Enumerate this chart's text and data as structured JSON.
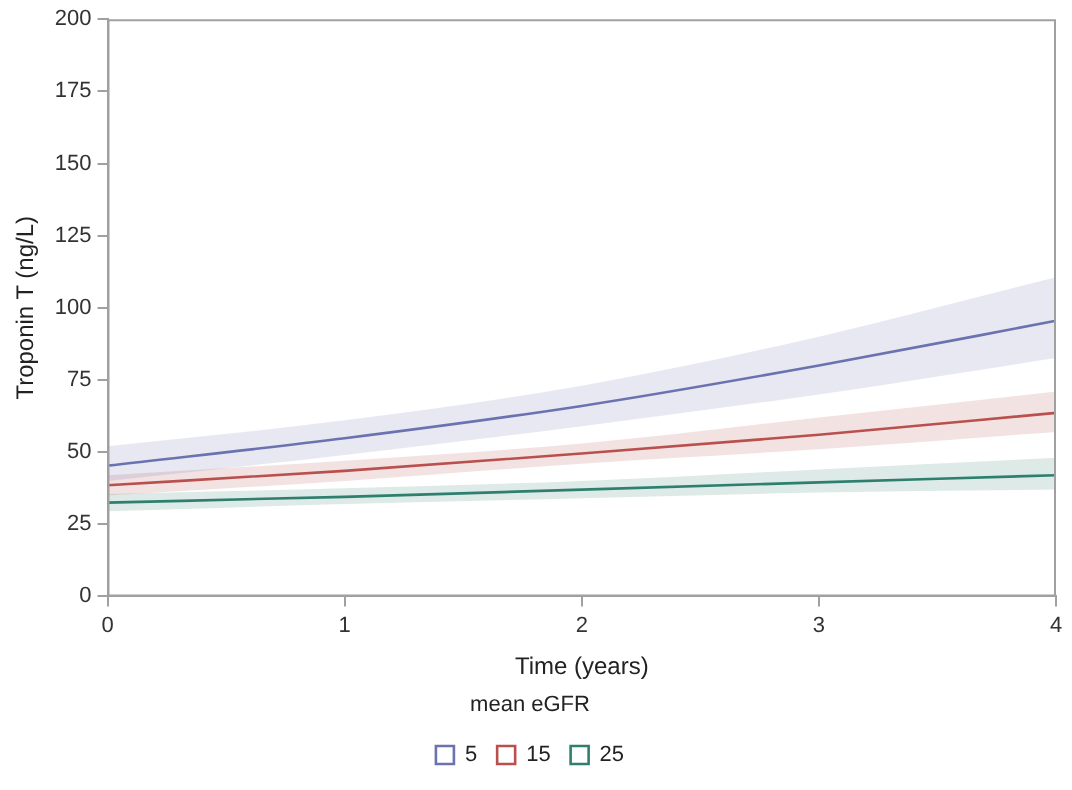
{
  "chart_data": {
    "type": "line",
    "xlabel": "Time (years)",
    "ylabel": "Troponin T (ng/L)",
    "legend_title": "mean eGFR",
    "x": [
      0,
      1,
      2,
      3,
      4
    ],
    "series": [
      {
        "name": "5",
        "color": "#6b72b0",
        "values": [
          45.3,
          54.8,
          66,
          80,
          95.5
        ],
        "lower": [
          40,
          49,
          59,
          70,
          82.6
        ],
        "upper": [
          52,
          61,
          73,
          90,
          110.6
        ]
      },
      {
        "name": "15",
        "color": "#b9504d",
        "values": [
          38.5,
          43.5,
          49.5,
          56,
          63.6
        ],
        "lower": [
          35,
          40,
          46,
          51,
          57
        ],
        "upper": [
          42,
          47,
          53,
          62,
          71
        ]
      },
      {
        "name": "25",
        "color": "#2f7f6f",
        "values": [
          32.5,
          34.5,
          37,
          39.5,
          42
        ],
        "lower": [
          29.5,
          32,
          34,
          36,
          37
        ],
        "upper": [
          35.5,
          37.5,
          40,
          44,
          48
        ]
      }
    ],
    "xlim": [
      0,
      4
    ],
    "xticks": [
      0,
      1,
      2,
      3,
      4
    ],
    "ylim": [
      0,
      200
    ],
    "yticks": [
      0,
      25,
      50,
      75,
      100,
      125,
      150,
      175,
      200
    ],
    "grid": false,
    "legend": "bottom",
    "marker": "none",
    "line_style": "solid"
  }
}
